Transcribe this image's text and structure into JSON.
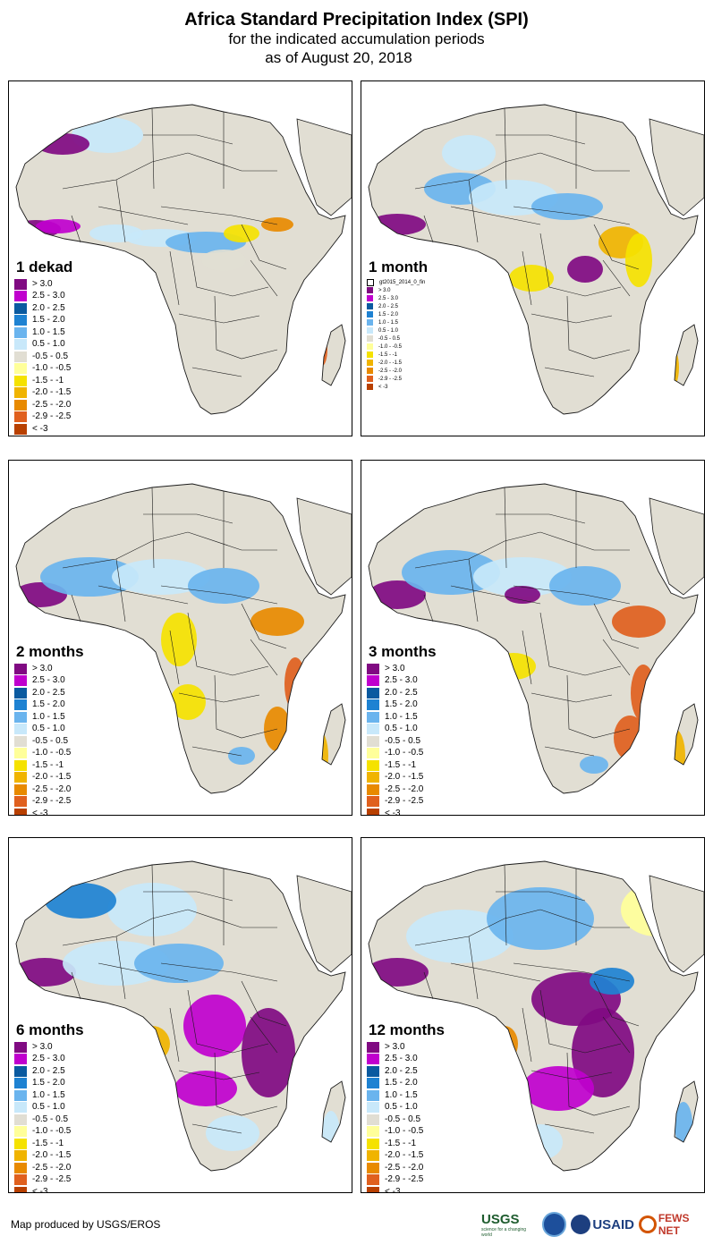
{
  "header": {
    "title": "Africa Standard Precipitation Index (SPI)",
    "subtitle": "for the indicated accumulation periods",
    "date": "as of August 20, 2018"
  },
  "legend_classes": [
    {
      "label": "> 3.0",
      "color": "#800a82"
    },
    {
      "label": "2.5 - 3.0",
      "color": "#c000ce"
    },
    {
      "label": "2.0 - 2.5",
      "color": "#0a5aa0"
    },
    {
      "label": "1.5 - 2.0",
      "color": "#1e82d2"
    },
    {
      "label": "1.0 - 1.5",
      "color": "#6ab4ee"
    },
    {
      "label": "0.5 - 1.0",
      "color": "#c8e8fa"
    },
    {
      "label": "-0.5 - 0.5",
      "color": "#e1ded3"
    },
    {
      "label": "-1.0 - -0.5",
      "color": "#ffff9a"
    },
    {
      "label": "-1.5 - -1",
      "color": "#f5e200"
    },
    {
      "label": "-2.0 - -1.5",
      "color": "#f0b400"
    },
    {
      "label": "-2.5 - -2.0",
      "color": "#e88a00"
    },
    {
      "label": "-2.9 - -2.5",
      "color": "#e0601e"
    },
    {
      "label": "< -3",
      "color": "#b84000"
    }
  ],
  "legend_classes_1month": [
    {
      "label": "> 3.0",
      "color": "#800a82"
    },
    {
      "label": "2.5 - 3.0",
      "color": "#c000ce"
    },
    {
      "label": "2.0 - 2.5",
      "color": "#0a5aa0"
    },
    {
      "label": "1.5 - 2.0",
      "color": "#1e82d2"
    },
    {
      "label": "1.0 - 1.5",
      "color": "#6ab4ee"
    },
    {
      "label": "0.5 - 1.0",
      "color": "#c8e8fa"
    },
    {
      "label": "-0.5 - 0.5",
      "color": "#e1ded3"
    },
    {
      "label": "-1.0 - -0.5",
      "color": "#ffff9a"
    },
    {
      "label": "-1.5 - -1",
      "color": "#f5e200"
    },
    {
      "label": "-2.0 - -1.5",
      "color": "#f0b400"
    },
    {
      "label": "-2.5 - -2.0",
      "color": "#e88a00"
    },
    {
      "label": "-2.9 - -2.5",
      "color": "#e0601e"
    },
    {
      "label": "< -3",
      "color": "#b84000"
    }
  ],
  "layer_name_1month": "gt2015_2014_0_fin",
  "panels": [
    {
      "label": "1 dekad"
    },
    {
      "label": "1 month"
    },
    {
      "label": "2 months"
    },
    {
      "label": "3 months"
    },
    {
      "label": "6 months"
    },
    {
      "label": "12 months"
    }
  ],
  "map_colors": {
    "land_neutral": "#e1ded3",
    "water": "#ffffff",
    "border": "#1a1a1a"
  },
  "footer": {
    "credit": "Map produced by USGS/EROS",
    "logos": {
      "usgs": "USGS",
      "usgs_tag": "science for a changing world",
      "usaid": "USAID",
      "fews": "FEWS NET"
    }
  }
}
